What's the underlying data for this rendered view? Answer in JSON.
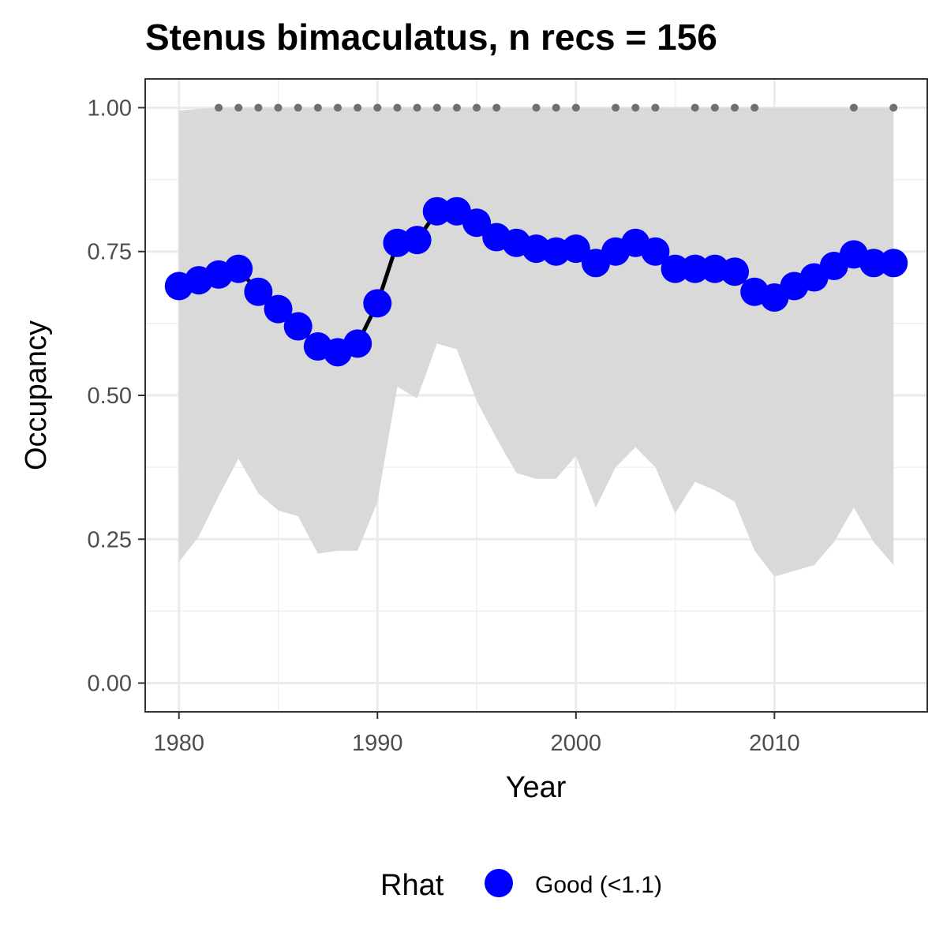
{
  "chart_data": {
    "type": "line",
    "title": "Stenus bimaculatus, n recs = 156",
    "xlabel": "Year",
    "ylabel": "Occupancy",
    "xlim": [
      1978.3,
      2017.7
    ],
    "ylim": [
      -0.05,
      1.05
    ],
    "x_ticks": [
      1980,
      1990,
      2000,
      2010
    ],
    "x_tick_labels": [
      "1980",
      "1990",
      "2000",
      "2010"
    ],
    "y_ticks": [
      0,
      0.25,
      0.5,
      0.75,
      1
    ],
    "y_tick_labels": [
      "0.00",
      "0.25",
      "0.50",
      "0.75",
      "1.00"
    ],
    "grid": true,
    "series": [
      {
        "name": "Good (<1.1)",
        "color": "#0000ff",
        "x": [
          1980,
          1981,
          1982,
          1983,
          1984,
          1985,
          1986,
          1987,
          1988,
          1989,
          1990,
          1991,
          1992,
          1993,
          1994,
          1995,
          1996,
          1997,
          1998,
          1999,
          2000,
          2001,
          2002,
          2003,
          2004,
          2005,
          2006,
          2007,
          2008,
          2009,
          2010,
          2011,
          2012,
          2013,
          2014,
          2015,
          2016
        ],
        "y": [
          0.69,
          0.7,
          0.71,
          0.72,
          0.68,
          0.65,
          0.62,
          0.585,
          0.575,
          0.59,
          0.66,
          0.765,
          0.77,
          0.82,
          0.82,
          0.8,
          0.775,
          0.765,
          0.755,
          0.75,
          0.755,
          0.73,
          0.75,
          0.765,
          0.75,
          0.72,
          0.72,
          0.72,
          0.715,
          0.68,
          0.67,
          0.69,
          0.705,
          0.725,
          0.745,
          0.73,
          0.73
        ]
      }
    ],
    "credible_interval": {
      "upper": [
        0.995,
        0.998,
        1.0,
        1.0,
        1.0,
        1.0,
        1.0,
        1.0,
        1.0,
        1.0,
        1.0,
        1.0,
        1.0,
        1.0,
        1.0,
        1.0,
        1.0,
        1.0,
        1.0,
        1.0,
        1.0,
        1.0,
        1.0,
        1.0,
        1.0,
        1.0,
        1.0,
        1.0,
        1.0,
        1.0,
        1.0,
        1.0,
        1.0,
        1.0,
        1.0,
        1.0,
        1.0
      ],
      "lower": [
        0.21,
        0.255,
        0.325,
        0.39,
        0.33,
        0.3,
        0.29,
        0.225,
        0.23,
        0.23,
        0.315,
        0.515,
        0.495,
        0.59,
        0.58,
        0.49,
        0.425,
        0.365,
        0.355,
        0.355,
        0.395,
        0.305,
        0.375,
        0.41,
        0.375,
        0.295,
        0.35,
        0.335,
        0.315,
        0.23,
        0.185,
        0.195,
        0.205,
        0.245,
        0.305,
        0.245,
        0.205
      ],
      "fill": "#d9d9d9"
    },
    "record_years": [
      1982,
      1983,
      1984,
      1985,
      1986,
      1987,
      1988,
      1989,
      1990,
      1991,
      1992,
      1993,
      1994,
      1995,
      1996,
      1998,
      1999,
      2000,
      2002,
      2003,
      2004,
      2006,
      2007,
      2008,
      2009,
      2014,
      2016
    ],
    "record_marker_y": 1.0,
    "legend": {
      "title": "Rhat",
      "position": "bottom",
      "entries": [
        {
          "label": "Good (<1.1)",
          "color": "#0000ff"
        }
      ]
    }
  }
}
